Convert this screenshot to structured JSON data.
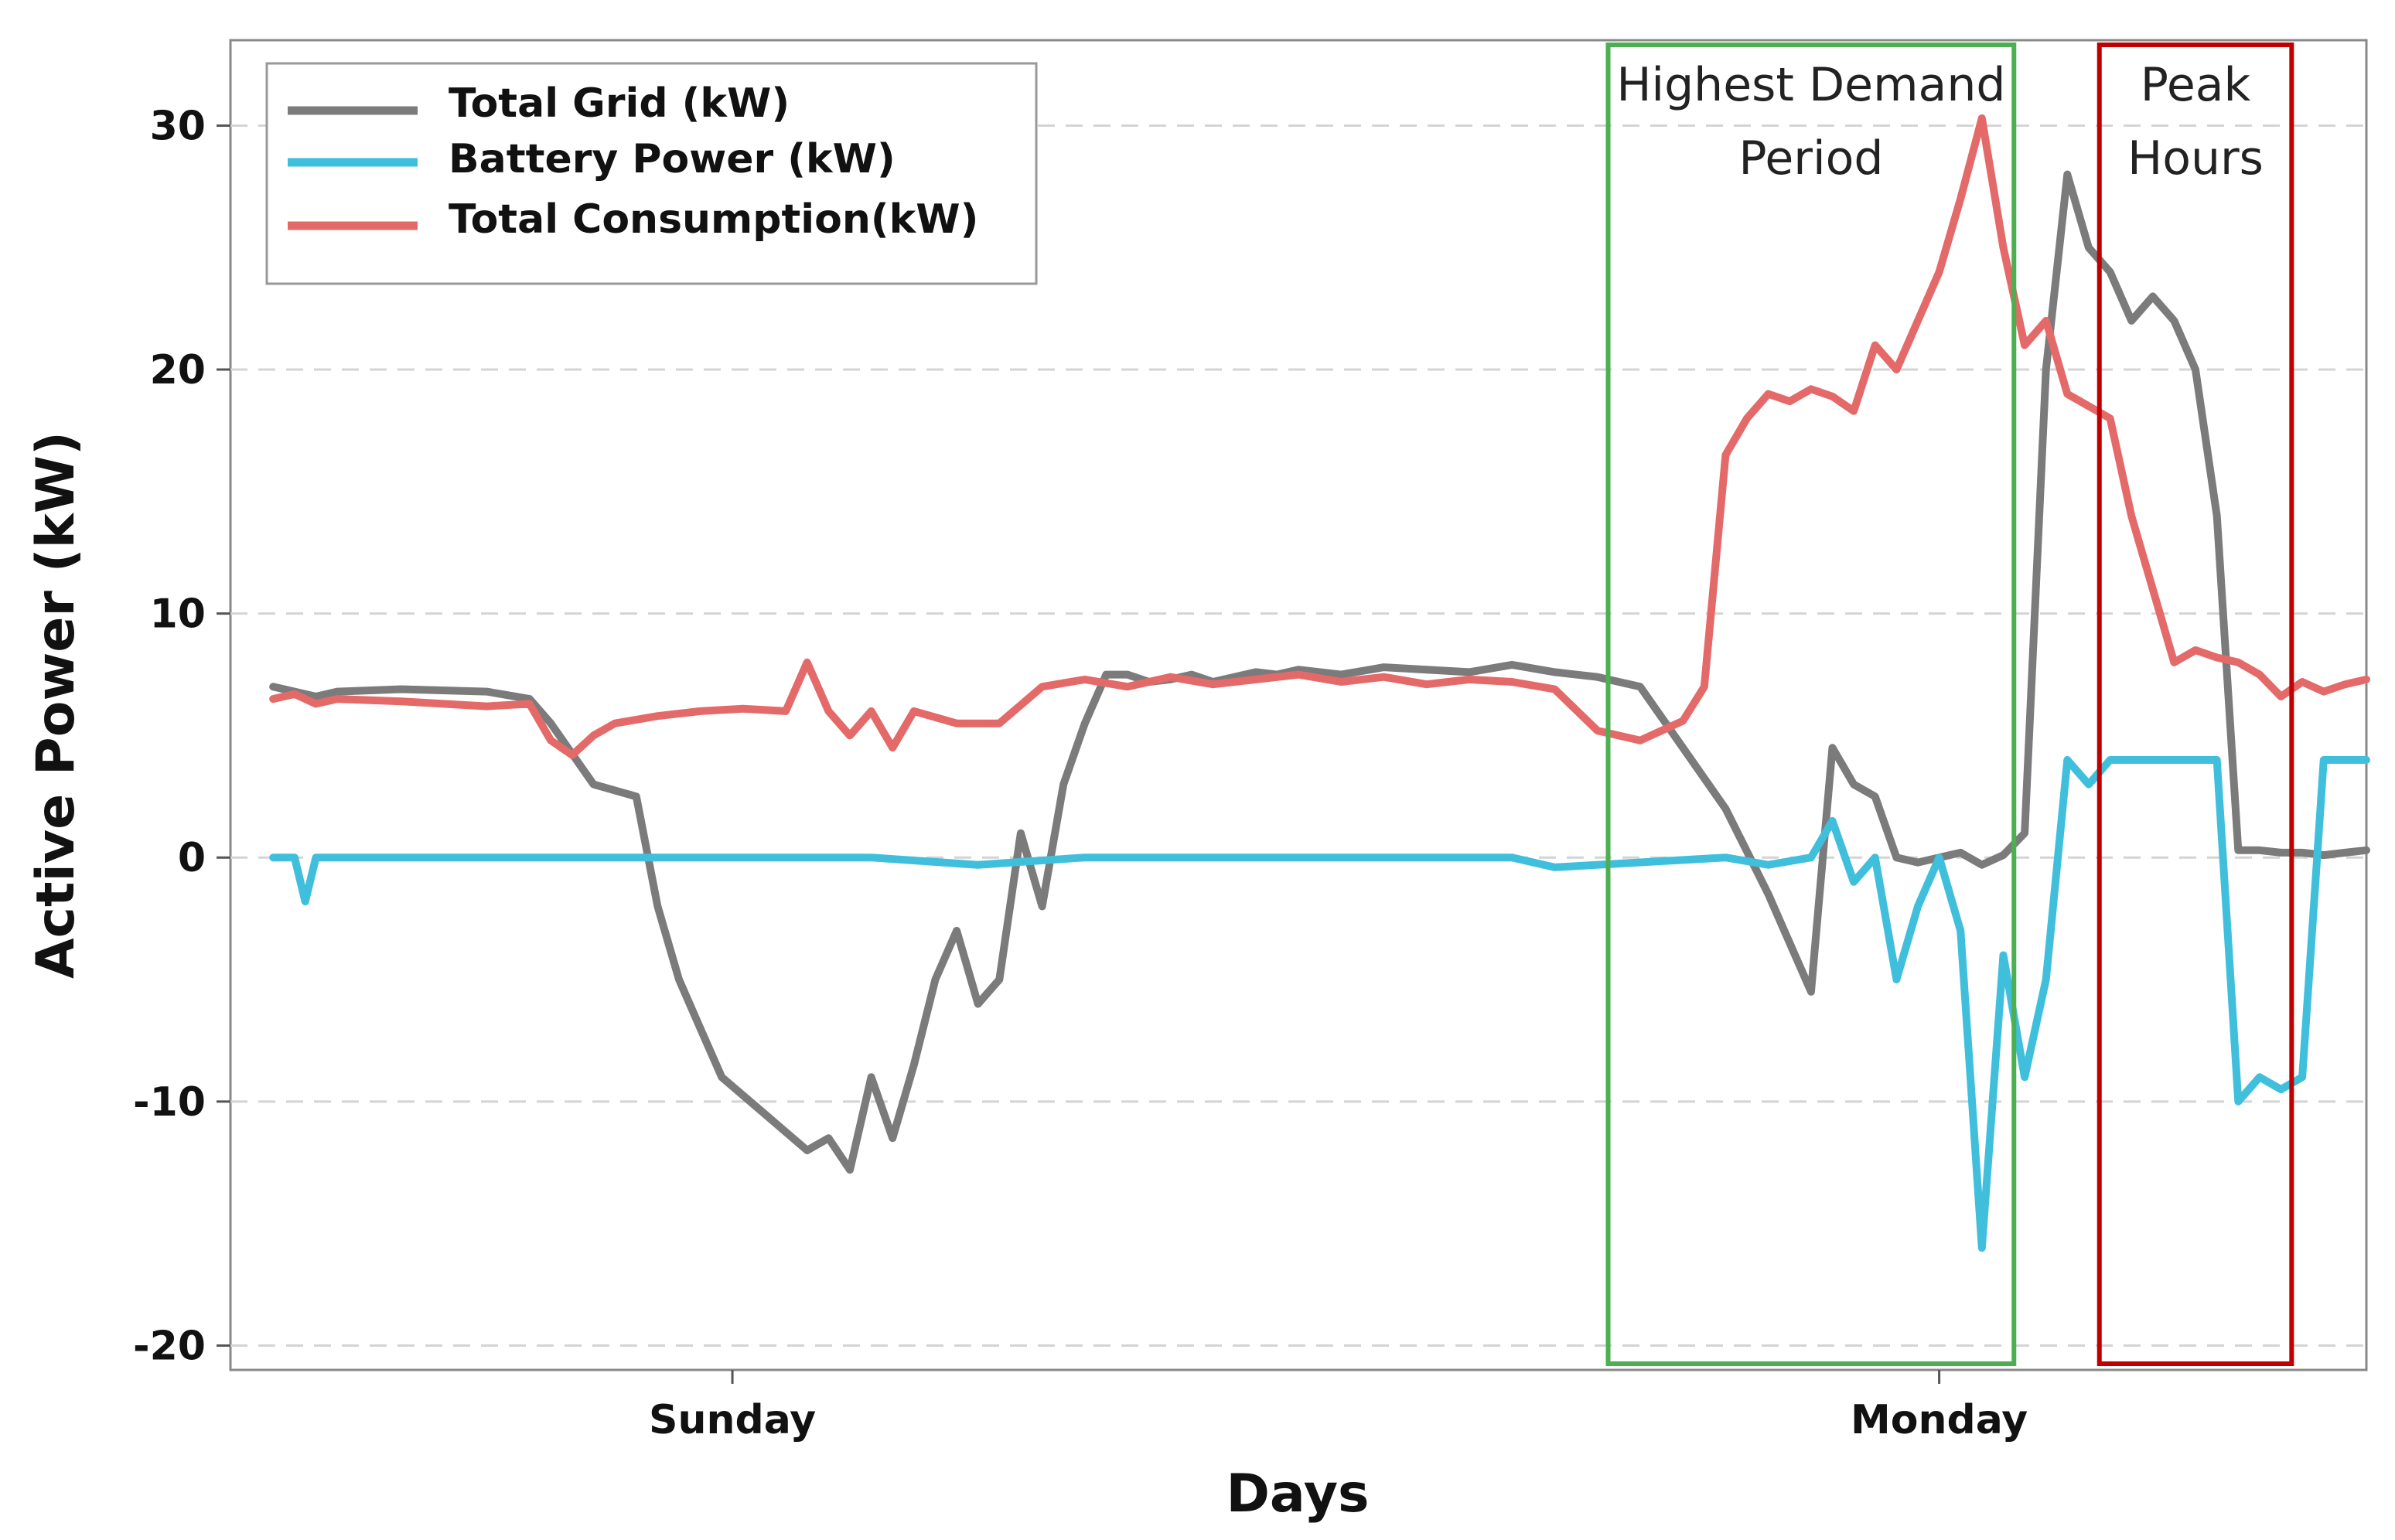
{
  "chart_data": {
    "type": "line",
    "xlabel": "Days",
    "ylabel": "Active Power (kW)",
    "xlim": [
      0,
      100
    ],
    "ylim": [
      -21,
      33.5
    ],
    "yticks": [
      -20,
      -10,
      0,
      10,
      20,
      30
    ],
    "ytick_labels": [
      "-20",
      "-10",
      "0",
      "10",
      "20",
      "30"
    ],
    "xticks": [
      23.5,
      80
    ],
    "xtick_labels": [
      "Sunday",
      "Monday"
    ],
    "grid": true,
    "legend_position": "top-left",
    "series": [
      {
        "name": "Total Grid (kW)",
        "color": "#7b7b7b",
        "x": [
          2,
          3,
          4,
          5,
          8,
          12,
          14,
          15,
          17,
          19,
          20,
          21,
          22,
          23,
          25,
          27,
          28,
          29,
          30,
          31,
          32,
          33,
          34,
          35,
          36,
          37,
          38,
          39,
          40,
          41,
          42,
          43,
          44,
          45,
          46,
          47,
          48,
          49,
          50,
          52,
          54,
          56,
          58,
          60,
          62,
          64,
          66,
          68,
          70,
          72,
          74,
          75,
          76,
          77,
          78,
          79,
          80,
          81,
          82,
          83,
          84,
          85,
          86,
          87,
          88,
          89,
          90,
          91,
          92,
          93,
          94,
          95,
          96,
          97,
          98,
          99,
          100
        ],
        "y": [
          7,
          6.8,
          6.6,
          6.8,
          6.9,
          6.8,
          6.5,
          5.5,
          3,
          2.5,
          -2,
          -5,
          -7,
          -9,
          -10.5,
          -12,
          -11.5,
          -12.8,
          -9,
          -11.5,
          -8.5,
          -5,
          -3,
          -6,
          -5,
          1,
          -2,
          3,
          5.5,
          7.5,
          7.5,
          7.2,
          7.3,
          7.5,
          7.2,
          7.4,
          7.6,
          7.5,
          7.7,
          7.5,
          7.8,
          7.7,
          7.6,
          7.9,
          7.6,
          7.4,
          7,
          4.5,
          2,
          -1.5,
          -5.5,
          4.5,
          3,
          2.5,
          0,
          -0.2,
          0,
          0.2,
          -0.3,
          0.1,
          1,
          20,
          28,
          25,
          24,
          22,
          23,
          22,
          20,
          14,
          0.3,
          0.3,
          0.2,
          0.2,
          0.1,
          0.2,
          0.3
        ]
      },
      {
        "name": "Battery Power (kW)",
        "color": "#40bfdc",
        "x": [
          2,
          3,
          3.5,
          4,
          5,
          10,
          20,
          30,
          35,
          40,
          50,
          60,
          62,
          70,
          72,
          74,
          75,
          76,
          77,
          78,
          79,
          80,
          81,
          82,
          83,
          84,
          85,
          86,
          87,
          88,
          89,
          90,
          91,
          92,
          93,
          94,
          95,
          96,
          97,
          98,
          99,
          100
        ],
        "y": [
          0,
          0,
          -1.8,
          0,
          0,
          0,
          0,
          0,
          -0.3,
          0,
          0,
          0,
          -0.4,
          0,
          -0.3,
          0,
          1.5,
          -1,
          0,
          -5,
          -2,
          0,
          -3,
          -16,
          -4,
          -9,
          -5,
          4,
          3,
          4,
          4,
          4,
          4,
          4,
          4,
          -10,
          -9,
          -9.5,
          -9,
          4,
          4,
          4
        ]
      },
      {
        "name": "Total Consumption(kW)",
        "color": "#e46a6a",
        "x": [
          2,
          3,
          4,
          5,
          8,
          12,
          14,
          15,
          16,
          17,
          18,
          20,
          22,
          24,
          26,
          27,
          28,
          29,
          30,
          31,
          32,
          34,
          36,
          38,
          40,
          42,
          44,
          46,
          48,
          50,
          52,
          54,
          56,
          58,
          60,
          62,
          64,
          66,
          68,
          69,
          70,
          71,
          72,
          73,
          74,
          75,
          76,
          77,
          78,
          79,
          80,
          81,
          82,
          83,
          84,
          85,
          86,
          87,
          88,
          89,
          90,
          91,
          92,
          93,
          94,
          95,
          96,
          97,
          98,
          99,
          100
        ],
        "y": [
          6.5,
          6.7,
          6.3,
          6.5,
          6.4,
          6.2,
          6.3,
          4.8,
          4.2,
          5,
          5.5,
          5.8,
          6,
          6.1,
          6,
          8,
          6,
          5,
          6,
          4.5,
          6,
          5.5,
          5.5,
          7,
          7.3,
          7,
          7.4,
          7.1,
          7.3,
          7.5,
          7.2,
          7.4,
          7.1,
          7.3,
          7.2,
          6.9,
          5.2,
          4.8,
          5.6,
          7,
          16.5,
          18,
          19,
          18.7,
          19.2,
          18.9,
          18.3,
          21,
          20,
          22,
          24,
          27,
          30.3,
          25,
          21,
          22,
          19,
          18.5,
          18,
          14,
          11,
          8,
          8.5,
          8.2,
          8,
          7.5,
          6.6,
          7.2,
          6.8,
          7.1,
          7.3
        ]
      }
    ],
    "annotations": [
      {
        "lines": [
          "Highest Demand",
          "Period"
        ],
        "x_range": [
          64.5,
          83.5
        ],
        "color": "#4caf50"
      },
      {
        "lines": [
          "Peak",
          "Hours"
        ],
        "x_range": [
          87.5,
          96.5
        ],
        "color": "#c00000"
      }
    ]
  }
}
